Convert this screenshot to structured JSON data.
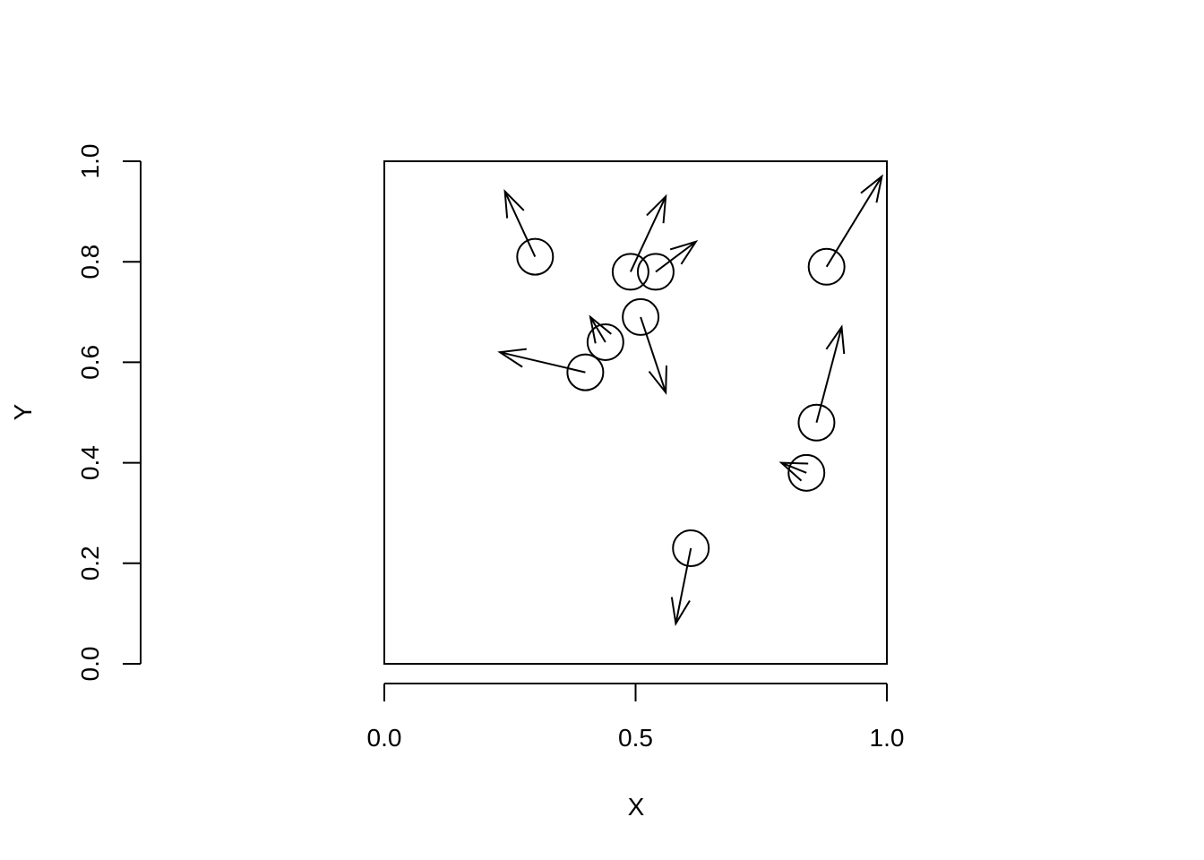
{
  "chart_data": {
    "type": "scatter",
    "title": "",
    "xlabel": "X",
    "ylabel": "Y",
    "xlim": [
      0,
      1
    ],
    "ylim": [
      0,
      1
    ],
    "xticks": [
      "0.0",
      "0.5",
      "1.0"
    ],
    "yticks": [
      "0.0",
      "0.2",
      "0.4",
      "0.6",
      "0.8",
      "1.0"
    ],
    "grid": false,
    "legend": "none",
    "marker": "open circle with arrow",
    "points": [
      {
        "x": 0.3,
        "y": 0.81,
        "dx": -0.06,
        "dy": 0.13
      },
      {
        "x": 0.49,
        "y": 0.78,
        "dx": 0.07,
        "dy": 0.15
      },
      {
        "x": 0.54,
        "y": 0.78,
        "dx": 0.08,
        "dy": 0.06
      },
      {
        "x": 0.51,
        "y": 0.69,
        "dx": 0.05,
        "dy": -0.15
      },
      {
        "x": 0.44,
        "y": 0.64,
        "dx": -0.03,
        "dy": 0.05
      },
      {
        "x": 0.4,
        "y": 0.58,
        "dx": -0.17,
        "dy": 0.04
      },
      {
        "x": 0.88,
        "y": 0.79,
        "dx": 0.11,
        "dy": 0.18
      },
      {
        "x": 0.86,
        "y": 0.48,
        "dx": 0.05,
        "dy": 0.19
      },
      {
        "x": 0.84,
        "y": 0.38,
        "dx": -0.05,
        "dy": 0.02
      },
      {
        "x": 0.61,
        "y": 0.23,
        "dx": -0.03,
        "dy": -0.15
      }
    ]
  }
}
